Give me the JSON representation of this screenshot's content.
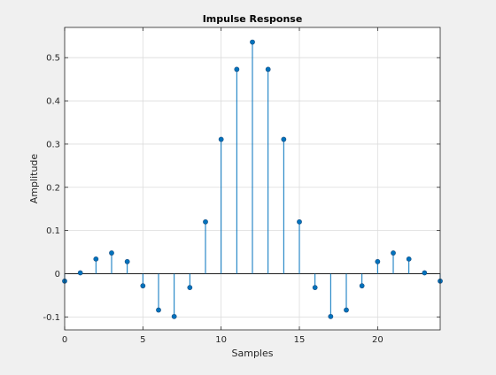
{
  "chart_data": {
    "type": "stem",
    "title": "Impulse Response",
    "xlabel": "Samples",
    "ylabel": "Amplitude",
    "xlim": [
      0,
      24
    ],
    "ylim": [
      -0.13,
      0.57
    ],
    "xticks": [
      0,
      5,
      10,
      15,
      20
    ],
    "yticks": [
      -0.1,
      0,
      0.1,
      0.2,
      0.3,
      0.4,
      0.5
    ],
    "ytick_labels": [
      "-0.1",
      "0",
      "0.1",
      "0.2",
      "0.3",
      "0.4",
      "0.5"
    ],
    "grid": true,
    "series": [
      {
        "x": [
          0,
          1,
          2,
          3,
          4,
          5,
          6,
          7,
          8,
          9,
          10,
          11,
          12,
          13,
          14,
          15,
          16,
          17,
          18,
          19,
          20,
          21,
          22,
          23,
          24
        ],
        "values": [
          -0.017,
          0.002,
          0.034,
          0.048,
          0.028,
          -0.028,
          -0.084,
          -0.099,
          -0.032,
          0.12,
          0.311,
          0.473,
          0.536,
          0.473,
          0.311,
          0.12,
          -0.032,
          -0.099,
          -0.084,
          -0.028,
          0.028,
          0.048,
          0.034,
          0.002,
          -0.017
        ]
      }
    ],
    "colors": {
      "stem": "#0072bd",
      "grid": "#dcdcdc",
      "axes": "#262626",
      "background": "#ffffff"
    }
  }
}
